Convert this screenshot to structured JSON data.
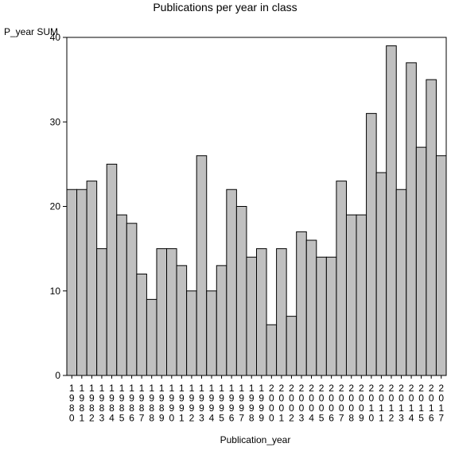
{
  "chart_data": {
    "type": "bar",
    "title": "Publications per year in class",
    "ylabel": "P_year SUM",
    "xlabel": "Publication_year",
    "ylim": [
      0,
      40
    ],
    "yticks": [
      0,
      10,
      20,
      30,
      40
    ],
    "categories": [
      "1980",
      "1981",
      "1982",
      "1983",
      "1984",
      "1985",
      "1986",
      "1987",
      "1988",
      "1989",
      "1990",
      "1991",
      "1992",
      "1993",
      "1994",
      "1995",
      "1996",
      "1997",
      "1998",
      "1999",
      "2000",
      "2001",
      "2002",
      "2003",
      "2004",
      "2005",
      "2006",
      "2007",
      "2008",
      "2009",
      "2010",
      "2011",
      "2012",
      "2013",
      "2014",
      "2015",
      "2016",
      "2017"
    ],
    "values": [
      22,
      22,
      23,
      15,
      25,
      19,
      18,
      12,
      9,
      15,
      15,
      13,
      10,
      26,
      10,
      13,
      22,
      20,
      14,
      15,
      6,
      15,
      7,
      17,
      16,
      14,
      14,
      23,
      19,
      19,
      31,
      24,
      39,
      22,
      37,
      27,
      35,
      26
    ],
    "colors": {
      "bar_fill": "#c0c0c0",
      "bar_stroke": "#000000",
      "axis": "#000000",
      "background": "#ffffff"
    },
    "grid": false
  }
}
